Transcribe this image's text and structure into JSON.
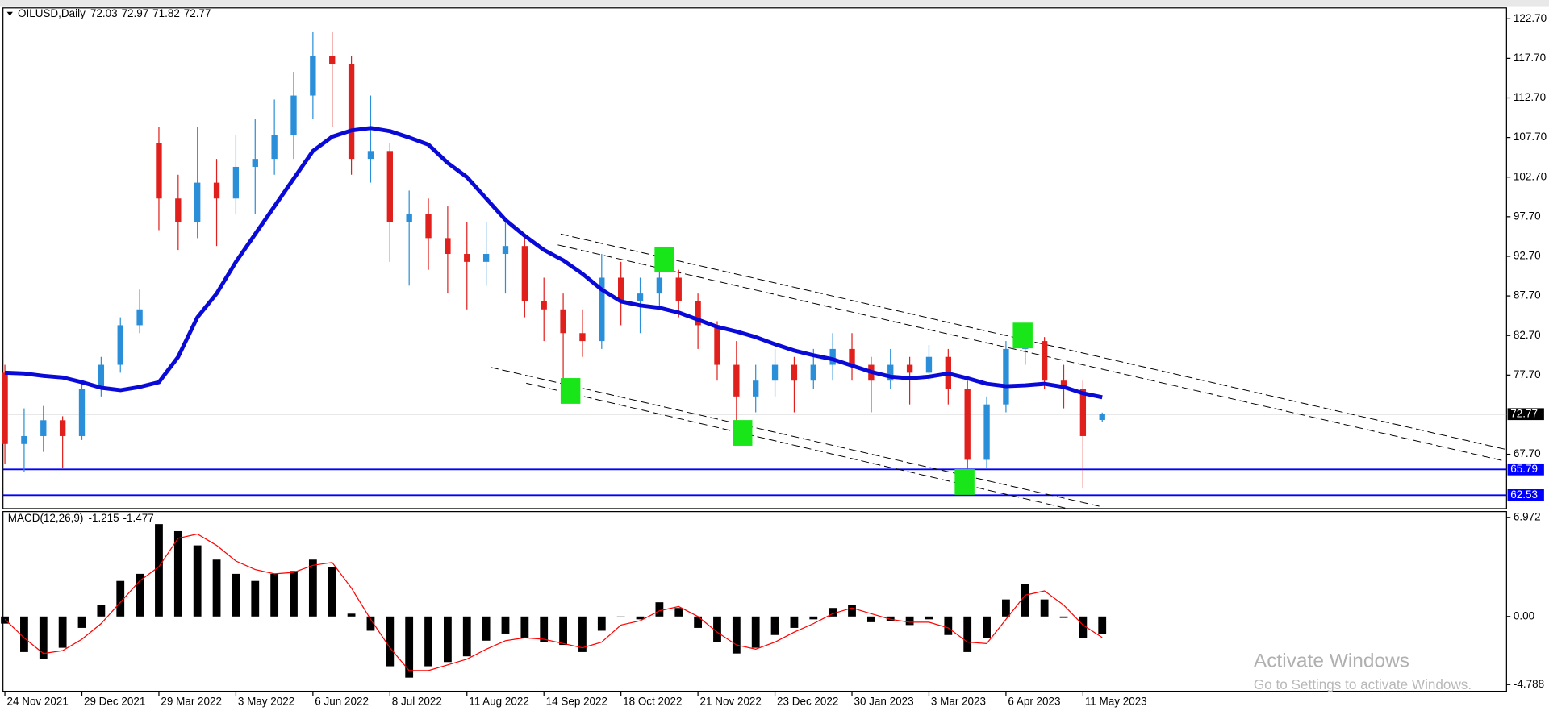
{
  "chart_data": [
    {
      "type": "candlestick",
      "title": "OILUSD,Daily",
      "x": [
        0,
        1,
        2,
        3,
        4,
        5,
        6,
        7,
        8,
        9,
        10,
        11,
        12,
        13,
        14,
        15,
        16,
        17,
        18,
        19,
        20,
        21,
        22,
        23,
        24,
        25,
        26,
        27,
        28,
        29,
        30,
        31,
        32,
        33,
        34,
        35,
        36,
        37,
        38,
        39,
        40,
        41,
        42,
        43,
        44,
        45,
        46,
        47,
        48,
        49,
        50,
        51,
        52,
        53,
        54,
        55,
        56,
        57
      ],
      "open": [
        78,
        69,
        70,
        72,
        70,
        76,
        79,
        84,
        107,
        100,
        97,
        102,
        100,
        104,
        105,
        108,
        113,
        118,
        117,
        105,
        106,
        97,
        98,
        95,
        93,
        92,
        93,
        94,
        87,
        86,
        83,
        82,
        90,
        87,
        88,
        90,
        87,
        84,
        79,
        75,
        77,
        79,
        77,
        79,
        81,
        79,
        77,
        79,
        78,
        80,
        76,
        67,
        74,
        81,
        82,
        77,
        76,
        72.03
      ],
      "high": [
        79,
        73.5,
        73.8,
        72.5,
        76.8,
        80,
        85,
        88.5,
        109,
        103,
        109,
        105,
        108,
        110,
        112.5,
        116,
        121,
        121,
        118,
        113,
        107,
        101,
        100,
        99,
        97,
        97,
        97,
        95,
        90,
        88,
        86,
        93,
        92,
        90,
        93,
        91,
        88,
        84.5,
        82,
        79,
        81,
        80,
        81,
        83,
        83,
        80,
        81,
        80,
        81.5,
        81,
        77,
        75,
        82,
        83.5,
        82.5,
        79,
        77,
        72.97
      ],
      "low": [
        66.5,
        65.5,
        68,
        66,
        69.5,
        75,
        78,
        83,
        96,
        93.5,
        95,
        94,
        98,
        98,
        103,
        105,
        110,
        109,
        103,
        102,
        92,
        89,
        91,
        88,
        86,
        89,
        88,
        85,
        82,
        76,
        80,
        81,
        84,
        83,
        86,
        85,
        81,
        77,
        71,
        73,
        75,
        73,
        76,
        77,
        77,
        73,
        76,
        74,
        77,
        74,
        64.5,
        66,
        73,
        79,
        76,
        73.5,
        63.5,
        71.82
      ],
      "close": [
        69,
        70,
        72,
        70,
        76,
        79,
        84,
        86,
        100,
        97,
        102,
        100,
        104,
        105,
        108,
        113,
        118,
        117,
        105,
        106,
        97,
        98,
        95,
        93,
        92,
        93,
        94,
        87,
        86,
        83,
        82,
        90,
        87,
        88,
        90,
        87,
        84,
        79,
        75,
        77,
        79,
        77,
        79,
        81,
        79,
        77,
        79,
        78,
        80,
        76,
        67,
        74,
        81,
        82,
        77,
        76,
        70,
        72.77
      ],
      "up_color": "#2a8fd8",
      "down_color": "#e0201c",
      "ma": {
        "color": "#0a0ad8",
        "values": [
          78.0,
          77.9,
          77.6,
          77.4,
          76.8,
          76.1,
          75.8,
          76.2,
          76.8,
          80,
          85,
          88,
          92,
          95.5,
          99,
          102.5,
          106,
          107.8,
          108.6,
          108.9,
          108.5,
          107.7,
          106.8,
          104.5,
          102.7,
          100,
          97.3,
          95.3,
          93.5,
          92.2,
          90.5,
          88.5,
          87,
          86.5,
          86.2,
          85.6,
          84.7,
          83.8,
          83.2,
          82.5,
          81.6,
          80.8,
          80.2,
          79.7,
          78.9,
          78.1,
          77.5,
          77.3,
          77.5,
          77.9,
          77.3,
          76.6,
          76.3,
          76.4,
          76.6,
          76.2,
          75.4,
          74.9
        ]
      },
      "levels": [
        {
          "value": 65.79,
          "color": "#0000ff"
        },
        {
          "value": 62.53,
          "color": "#0000ff"
        }
      ],
      "last_price_color": "#c0c0c0",
      "trendlines": [
        {
          "x": [
            28.87,
            77.95
          ],
          "y": [
            95.51,
            68.32
          ]
        },
        {
          "x": [
            28.72,
            77.95
          ],
          "y": [
            94.14,
            66.82
          ]
        },
        {
          "x": [
            25.23,
            56.92
          ],
          "y": [
            78.68,
            61.1
          ]
        },
        {
          "x": [
            27.08,
            55.1
          ],
          "y": [
            76.68,
            60.9
          ]
        }
      ],
      "markers": {
        "color": "#19e619",
        "x": [
          29.38,
          34.26,
          38.31,
          49.85,
          52.87
        ],
        "y": [
          75.7,
          92.3,
          70.4,
          64.2,
          82.7
        ]
      },
      "xlim": [
        -0.1,
        78
      ],
      "ylim": [
        60.84,
        124.07
      ],
      "yticks": [
        {
          "value": 122.7,
          "label": "122.70"
        },
        {
          "value": 117.7,
          "label": "117.70"
        },
        {
          "value": 112.7,
          "label": "112.70"
        },
        {
          "value": 107.7,
          "label": "107.70"
        },
        {
          "value": 102.7,
          "label": "102.70"
        },
        {
          "value": 97.7,
          "label": "97.70"
        },
        {
          "value": 92.7,
          "label": "92.70"
        },
        {
          "value": 87.7,
          "label": "87.70"
        },
        {
          "value": 82.7,
          "label": "82.70"
        },
        {
          "value": 77.7,
          "label": "77.70"
        },
        {
          "value": 67.7,
          "label": "67.70"
        }
      ]
    },
    {
      "type": "macd",
      "title": "MACD(12,26,9)",
      "histogram": [
        -0.5,
        -2.5,
        -3.0,
        -2.2,
        -0.8,
        0.8,
        2.5,
        3.0,
        6.5,
        6.0,
        5.0,
        4.0,
        3.0,
        2.5,
        3.0,
        3.2,
        4.0,
        3.5,
        0.2,
        -1.0,
        -3.5,
        -4.3,
        -3.5,
        -3.2,
        -2.8,
        -1.7,
        -1.2,
        -1.5,
        -1.8,
        -2.0,
        -2.5,
        -1.0,
        0.0,
        -0.2,
        1.0,
        0.6,
        -0.8,
        -1.8,
        -2.6,
        -2.2,
        -1.3,
        -0.8,
        -0.2,
        0.6,
        0.8,
        -0.4,
        -0.3,
        -0.6,
        -0.2,
        -1.3,
        -2.5,
        -1.5,
        1.2,
        2.3,
        1.2,
        -0.1,
        -1.5,
        -1.215
      ],
      "signal": [
        -0.2,
        -1.5,
        -2.6,
        -2.4,
        -1.6,
        -0.5,
        1.0,
        2.5,
        3.5,
        5.5,
        5.8,
        5.0,
        3.9,
        3.3,
        3.0,
        3.1,
        3.6,
        3.8,
        2.0,
        -0.2,
        -2.2,
        -3.8,
        -3.8,
        -3.4,
        -3.0,
        -2.3,
        -1.7,
        -1.5,
        -1.6,
        -1.9,
        -2.2,
        -1.8,
        -0.6,
        -0.3,
        0.4,
        0.7,
        0.0,
        -1.1,
        -2.0,
        -2.3,
        -1.8,
        -1.1,
        -0.5,
        0.2,
        0.6,
        0.2,
        -0.2,
        -0.4,
        -0.4,
        -0.8,
        -1.8,
        -1.9,
        -0.2,
        1.5,
        1.8,
        0.8,
        -0.6,
        -1.477
      ],
      "histogram_color": "#000000",
      "signal_color": "#ff0000",
      "ylim": [
        -5.26,
        7.38
      ],
      "yticks": [
        6.972,
        {
          "value": 0,
          "label": "0.00"
        },
        -4.788
      ],
      "xlim": [
        -0.1,
        78
      ],
      "xticks": [
        {
          "value": 0,
          "label": "24 Nov 2021"
        },
        {
          "value": 4,
          "label": "29 Dec 2021"
        },
        {
          "value": 8,
          "label": "29 Mar 2022"
        },
        {
          "value": 12,
          "label": "3 May 2022"
        },
        {
          "value": 16,
          "label": "6 Jun 2022"
        },
        {
          "value": 20,
          "label": "8 Jul 2022"
        },
        {
          "value": 24,
          "label": "11 Aug 2022"
        },
        {
          "value": 28,
          "label": "14 Sep 2022"
        },
        {
          "value": 32,
          "label": "18 Oct 2022"
        },
        {
          "value": 36,
          "label": "21 Nov 2022"
        },
        {
          "value": 40,
          "label": "23 Dec 2022"
        },
        {
          "value": 44,
          "label": "30 Jan 2023"
        },
        {
          "value": 48,
          "label": "3 Mar 2023"
        },
        {
          "value": 52,
          "label": "6 Apr 2023"
        },
        {
          "value": 56,
          "label": "11 May 2023"
        }
      ]
    }
  ],
  "watermark": {
    "title": "Activate Windows",
    "subtitle": "Go to Settings to activate Windows."
  }
}
